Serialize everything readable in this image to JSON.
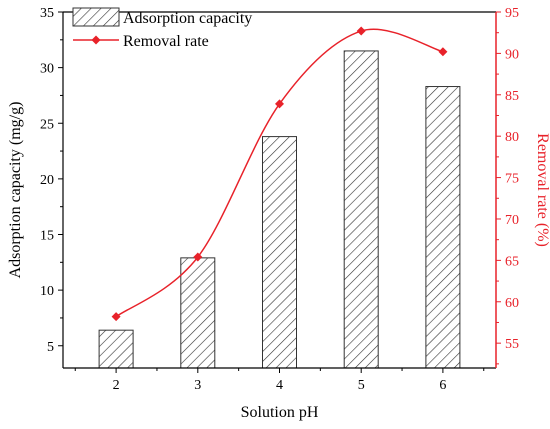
{
  "chart_data": {
    "type": "bar",
    "categories": [
      "2",
      "3",
      "4",
      "5",
      "6"
    ],
    "xlabel": "Solution pH",
    "series": [
      {
        "name": "Adsorption capacity",
        "type": "bar",
        "axis": "left",
        "values": [
          6.4,
          12.9,
          23.8,
          31.5,
          28.3
        ],
        "pattern": "diagonal-hatch",
        "color": "#333333"
      },
      {
        "name": "Removal rate",
        "type": "line",
        "axis": "right",
        "values": [
          58.2,
          65.4,
          83.9,
          92.7,
          90.2
        ],
        "marker": "diamond",
        "smooth": true,
        "color": "#e8222a"
      }
    ],
    "yaxis_left": {
      "label": "Adsorption capacity (mg/g)",
      "range": [
        3,
        35
      ],
      "ticks": [
        5,
        10,
        15,
        20,
        25,
        30,
        35
      ]
    },
    "yaxis_right": {
      "label": "Removal rate (%)",
      "range": [
        52,
        95
      ],
      "ticks": [
        55,
        60,
        65,
        70,
        75,
        80,
        85,
        90,
        95
      ],
      "color": "#e8222a"
    },
    "xrange": [
      1.35,
      6.65
    ],
    "grid": false,
    "legend_position": "top-left"
  }
}
